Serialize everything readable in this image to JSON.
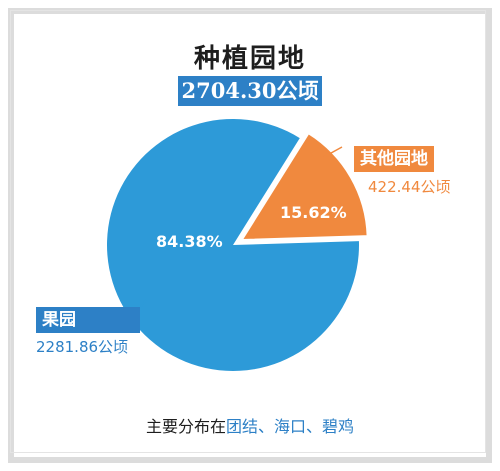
{
  "title": "种植园地",
  "total": "2704.30公顷",
  "colors": {
    "fruit": "#2d9ad8",
    "other": "#f0893e",
    "accent": "#2d80c6"
  },
  "chart_data": {
    "type": "pie",
    "title": "种植园地",
    "total": "2704.30公顷",
    "slices": [
      {
        "name": "果园",
        "value": 2281.86,
        "value_label": "2281.86公顷",
        "percent": 84.38,
        "percent_label": "84.38%"
      },
      {
        "name": "其他园地",
        "value": 422.44,
        "value_label": "422.44公顷",
        "percent": 15.62,
        "percent_label": "15.62%"
      }
    ],
    "legend": "none"
  },
  "footer": {
    "prefix": "主要分布在",
    "places": "团结、海口、碧鸡"
  }
}
